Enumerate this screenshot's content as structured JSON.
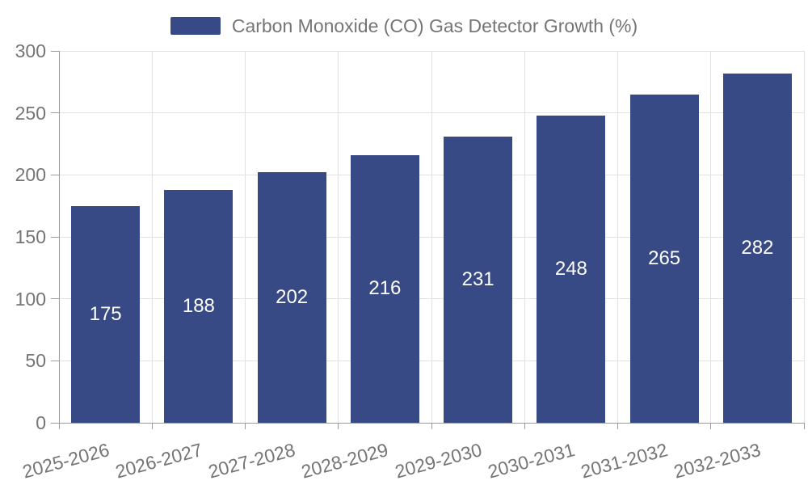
{
  "legend": {
    "label": "Carbon Monoxide (CO) Gas Detector Growth (%)"
  },
  "colors": {
    "bar": "#384a85",
    "bar_label": "#ffffff",
    "legend_text": "#757575",
    "tick_label": "#757575",
    "axis_line": "#9c9c9c",
    "gridline": "#e2e2e2",
    "background": "#ffffff"
  },
  "chart_data": {
    "type": "bar",
    "title": "Carbon Monoxide (CO) Gas Detector Growth (%)",
    "categories": [
      "2025-2026",
      "2026-2027",
      "2027-2028",
      "2028-2029",
      "2029-2030",
      "2030-2031",
      "2031-2032",
      "2032-2033"
    ],
    "values": [
      175,
      188,
      202,
      216,
      231,
      248,
      265,
      282
    ],
    "xlabel": "",
    "ylabel": "",
    "ylim": [
      0,
      300
    ],
    "yticks": [
      0,
      50,
      100,
      150,
      200,
      250,
      300
    ],
    "grid": true,
    "legend_position": "top-center",
    "bar_labels_inside": true,
    "x_label_rotation_deg": -15
  }
}
